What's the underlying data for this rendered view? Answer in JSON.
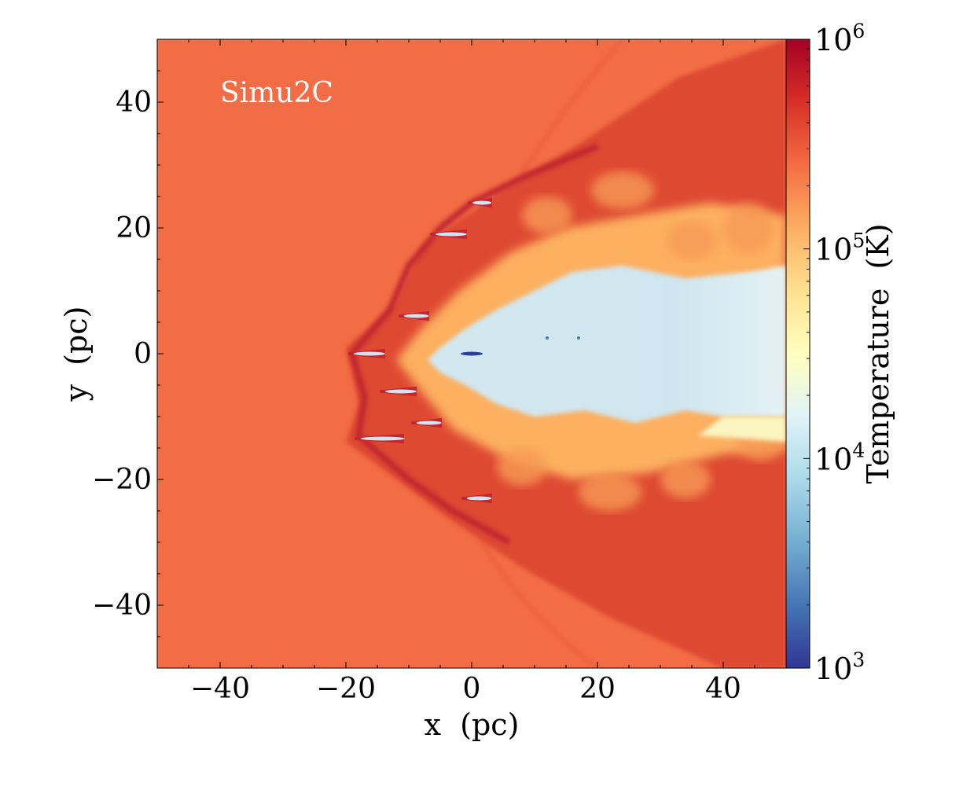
{
  "chart_data": {
    "type": "heatmap",
    "annotation": "Simu2C",
    "xlabel": "x  (pc)",
    "ylabel": "y  (pc)",
    "xlim": [
      -50,
      50
    ],
    "ylim": [
      -50,
      50
    ],
    "x_ticks": [
      -40,
      -20,
      0,
      20,
      40
    ],
    "y_ticks": [
      -40,
      -20,
      0,
      20,
      40
    ],
    "x_tick_labels": [
      "−40",
      "−20",
      "0",
      "20",
      "40"
    ],
    "y_tick_labels": [
      "−40",
      "−20",
      "0",
      "20",
      "40"
    ],
    "colorbar": {
      "label": "Temperature  (K)",
      "scale": "log",
      "range": [
        1000,
        1000000
      ],
      "colormap": "RdYlBu_r",
      "ticks": [
        {
          "value": 1000,
          "base": "10",
          "exp": "3"
        },
        {
          "value": 10000,
          "base": "10",
          "exp": "4"
        },
        {
          "value": 100000,
          "base": "10",
          "exp": "5"
        },
        {
          "value": 1000000,
          "base": "10",
          "exp": "6"
        }
      ]
    },
    "field": {
      "ambient_temperature_K": 300000,
      "shocked_shell_temperature_K": 500000,
      "cool_core_temperature_K": 15000,
      "coldest_temperature_K": 1500,
      "bow_shock_apex_pc": [
        -28,
        -12
      ]
    },
    "colors": {
      "ambient": "#f26d45",
      "shell": "#de4a33",
      "hot_edge": "#c1272d",
      "warm": "#fcb060",
      "cool_core": "#c9e3ef",
      "coldest": "#2b3f96"
    }
  }
}
